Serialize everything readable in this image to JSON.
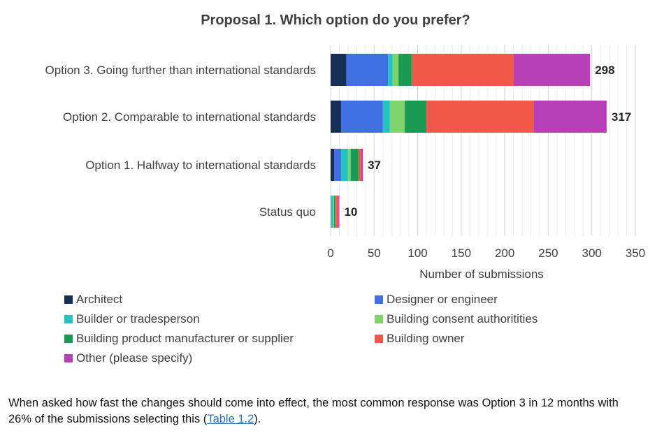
{
  "colors": {
    "Architect": "#172f57",
    "Designer or engineer": "#3f6fe0",
    "Builder or tradesperson": "#23c4c0",
    "Building consent authoritities": "#7fd36a",
    "Building product manufacturer or supplier": "#1a9a52",
    "Building owner": "#f2584a",
    "Other (please specify)": "#b73fb7"
  },
  "chart_data": {
    "type": "bar",
    "orientation": "horizontal",
    "stacked": true,
    "title": "Proposal 1. Which option do you prefer?",
    "xlabel": "Number of submissions",
    "ylabel": "",
    "xlim": [
      0,
      350
    ],
    "xticks": [
      0,
      50,
      100,
      150,
      200,
      250,
      300,
      350
    ],
    "grid": "vertical",
    "legend": "bottom",
    "categories": [
      "Option 3. Going further than international standards",
      "Option 2. Comparable to international standards",
      "Option 1. Halfway to international standards",
      "Status quo"
    ],
    "totals": [
      298,
      317,
      37,
      10
    ],
    "series": [
      {
        "name": "Architect",
        "values": [
          18,
          12,
          4,
          0
        ]
      },
      {
        "name": "Designer or engineer",
        "values": [
          48,
          48,
          8,
          0
        ]
      },
      {
        "name": "Builder or tradesperson",
        "values": [
          5,
          8,
          8,
          3
        ]
      },
      {
        "name": "Building consent authoritities",
        "values": [
          7,
          17,
          3,
          1
        ]
      },
      {
        "name": "Building product manufacturer or supplier",
        "values": [
          15,
          25,
          9,
          1
        ]
      },
      {
        "name": "Building owner",
        "values": [
          117,
          123,
          3,
          4
        ]
      },
      {
        "name": "Other (please specify)",
        "values": [
          88,
          84,
          2,
          1
        ]
      }
    ]
  },
  "caption": {
    "text_before": "When asked how fast the changes should come into effect, the most common response was Option 3 in 12 months with 26% of the submissions selecting this (",
    "link_text": "Table 1.2",
    "text_after": ")."
  }
}
